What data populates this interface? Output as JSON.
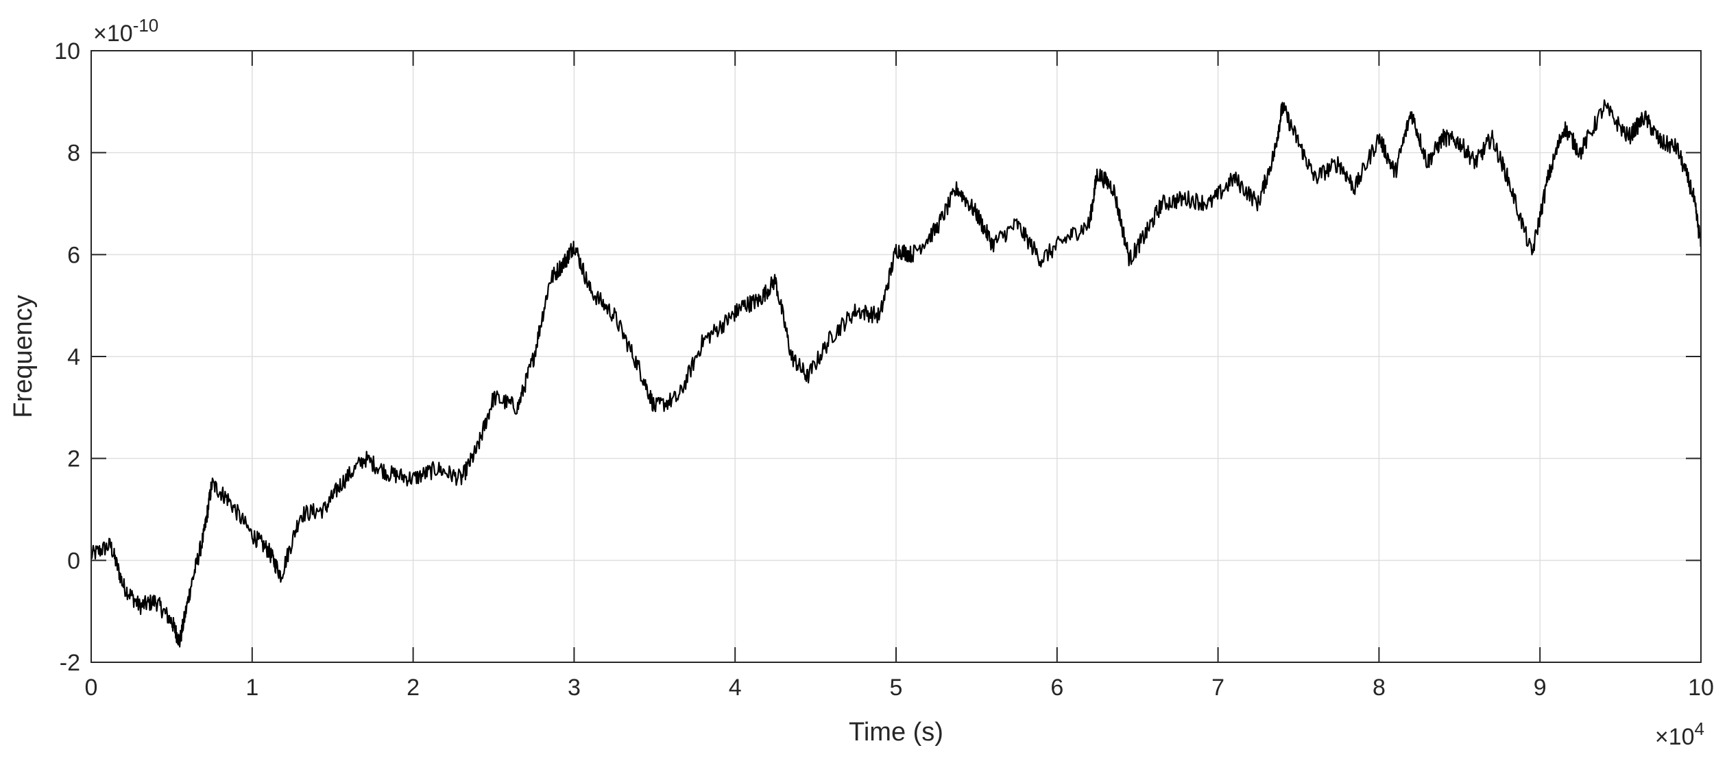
{
  "chart_data": {
    "type": "line",
    "title": "",
    "xlabel": "Time (s)",
    "ylabel": "Frequency",
    "x_exponent_label": {
      "base": "×10",
      "exp": "4"
    },
    "y_exponent_label": {
      "base": "×10",
      "exp": "-10"
    },
    "xlim": [
      0,
      10
    ],
    "ylim": [
      -2,
      10
    ],
    "x_ticks": [
      0,
      1,
      2,
      3,
      4,
      5,
      6,
      7,
      8,
      9,
      10
    ],
    "y_ticks": [
      -2,
      0,
      2,
      4,
      6,
      8,
      10
    ],
    "x_tick_labels": [
      "0",
      "1",
      "2",
      "3",
      "4",
      "5",
      "6",
      "7",
      "8",
      "9",
      "10"
    ],
    "y_tick_labels": [
      "-2",
      "0",
      "2",
      "4",
      "6",
      "8",
      "10"
    ],
    "grid": true,
    "line_color": "#000000",
    "series": [
      {
        "x": [
          0,
          0.12,
          0.2,
          0.3,
          0.4,
          0.5,
          0.55,
          0.62,
          0.7,
          0.75,
          0.85,
          1.0,
          1.1,
          1.18,
          1.3,
          1.45,
          1.55,
          1.7,
          1.85,
          2.0,
          2.15,
          2.3,
          2.4,
          2.5,
          2.65,
          2.75,
          2.85,
          2.95,
          3.0,
          3.1,
          3.25,
          3.4,
          3.5,
          3.65,
          3.8,
          3.95,
          4.05,
          4.15,
          4.25,
          4.35,
          4.45,
          4.6,
          4.75,
          4.9,
          5.0,
          5.1,
          5.25,
          5.38,
          5.5,
          5.6,
          5.75,
          5.9,
          6.05,
          6.2,
          6.25,
          6.35,
          6.45,
          6.55,
          6.65,
          6.8,
          6.95,
          7.1,
          7.25,
          7.35,
          7.4,
          7.5,
          7.6,
          7.75,
          7.85,
          8.0,
          8.1,
          8.2,
          8.3,
          8.4,
          8.5,
          8.6,
          8.7,
          8.8,
          8.95,
          9.05,
          9.15,
          9.25,
          9.4,
          9.55,
          9.65,
          9.75,
          9.85,
          9.95,
          10.0
        ],
        "y": [
          0.1,
          0.3,
          -0.5,
          -0.9,
          -0.8,
          -1.2,
          -1.6,
          -0.5,
          0.5,
          1.5,
          1.2,
          0.5,
          0.2,
          -0.3,
          0.9,
          1.0,
          1.5,
          2.0,
          1.7,
          1.6,
          1.8,
          1.6,
          2.2,
          3.2,
          3.0,
          4.0,
          5.5,
          5.9,
          6.2,
          5.3,
          4.8,
          3.8,
          3.0,
          3.2,
          4.3,
          4.7,
          5.0,
          5.1,
          5.5,
          4.0,
          3.6,
          4.4,
          4.9,
          4.8,
          6.1,
          6.0,
          6.5,
          7.3,
          6.8,
          6.2,
          6.6,
          5.9,
          6.3,
          6.6,
          7.6,
          7.3,
          5.9,
          6.4,
          7.0,
          7.1,
          7.0,
          7.5,
          7.0,
          8.0,
          8.9,
          8.2,
          7.5,
          7.8,
          7.3,
          8.3,
          7.6,
          8.8,
          7.8,
          8.3,
          8.2,
          7.8,
          8.3,
          7.5,
          6.0,
          7.5,
          8.5,
          8.0,
          8.9,
          8.3,
          8.7,
          8.2,
          8.1,
          7.2,
          6.2
        ]
      }
    ]
  }
}
